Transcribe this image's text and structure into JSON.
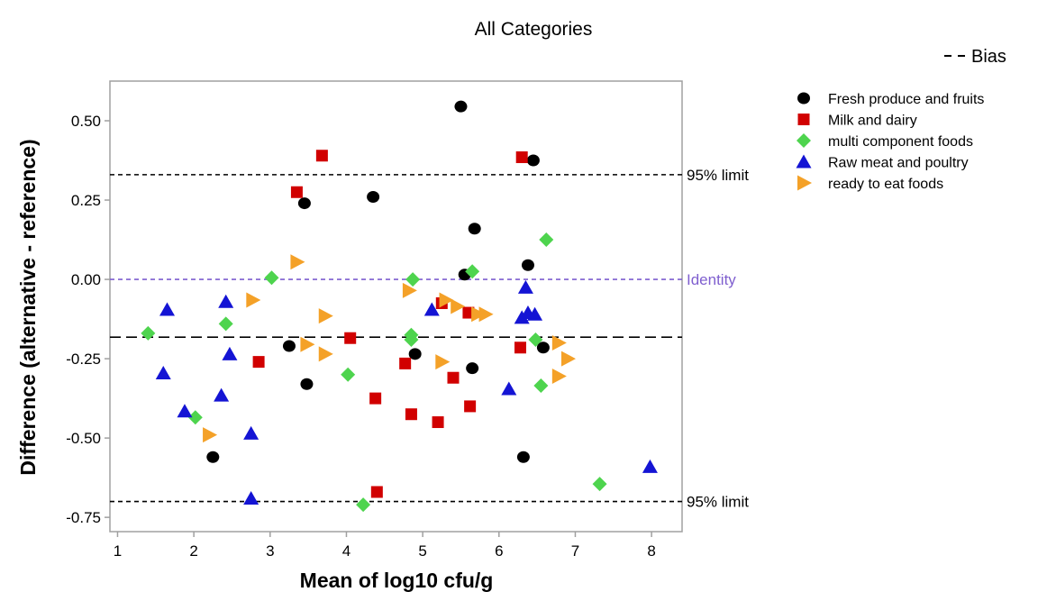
{
  "chart_data": {
    "type": "scatter",
    "title": "All Categories",
    "xlabel": "Mean of log10 cfu/g",
    "ylabel": "Difference (alternative - reference)",
    "xlim": [
      0.9,
      8.4
    ],
    "ylim": [
      -0.795,
      0.625
    ],
    "x_ticks": [
      1,
      2,
      3,
      4,
      5,
      6,
      7,
      8
    ],
    "y_ticks": [
      0.5,
      0.25,
      0.0,
      -0.25,
      -0.5,
      -0.75
    ],
    "y_tick_labels": [
      "0.50",
      "0.25",
      "0.00",
      "-0.25",
      "-0.50",
      "-0.75"
    ],
    "grid": false,
    "legend_position": "right",
    "reference_lines": [
      {
        "label": "95% limit",
        "value": 0.33,
        "style": "dashed",
        "color": "#000000"
      },
      {
        "label": "Identity",
        "value": 0.0,
        "style": "dashed",
        "color": "#7f5fcf"
      },
      {
        "label": "",
        "value": -0.182,
        "style": "long-dashed",
        "color": "#000000"
      },
      {
        "label": "95% limit",
        "value": -0.7,
        "style": "dashed",
        "color": "#000000"
      }
    ],
    "bias_legend": "Bias",
    "series": [
      {
        "name": "Fresh produce and fruits",
        "marker": "circle",
        "color": "#000000",
        "points": [
          [
            2.25,
            -0.56
          ],
          [
            3.25,
            -0.21
          ],
          [
            3.45,
            0.24
          ],
          [
            3.48,
            -0.33
          ],
          [
            4.35,
            0.26
          ],
          [
            4.9,
            -0.235
          ],
          [
            5.5,
            0.545
          ],
          [
            5.55,
            0.015
          ],
          [
            5.65,
            -0.28
          ],
          [
            5.68,
            0.16
          ],
          [
            6.32,
            -0.56
          ],
          [
            6.38,
            0.045
          ],
          [
            6.45,
            0.375
          ],
          [
            6.58,
            -0.215
          ]
        ]
      },
      {
        "name": "Milk and dairy",
        "marker": "square",
        "color": "#d10000",
        "points": [
          [
            2.85,
            -0.26
          ],
          [
            3.35,
            0.275
          ],
          [
            3.68,
            0.39
          ],
          [
            4.05,
            -0.185
          ],
          [
            4.38,
            -0.375
          ],
          [
            4.4,
            -0.67
          ],
          [
            4.77,
            -0.265
          ],
          [
            4.85,
            -0.425
          ],
          [
            5.2,
            -0.45
          ],
          [
            5.25,
            -0.075
          ],
          [
            5.4,
            -0.31
          ],
          [
            5.6,
            -0.105
          ],
          [
            5.62,
            -0.4
          ],
          [
            6.28,
            -0.215
          ],
          [
            6.3,
            0.385
          ]
        ]
      },
      {
        "name": "multi component foods",
        "marker": "diamond",
        "color": "#4ed44e",
        "points": [
          [
            1.4,
            -0.17
          ],
          [
            2.02,
            -0.435
          ],
          [
            2.42,
            -0.14
          ],
          [
            3.02,
            0.005
          ],
          [
            4.02,
            -0.3
          ],
          [
            4.22,
            -0.71
          ],
          [
            4.85,
            -0.19
          ],
          [
            4.85,
            -0.175
          ],
          [
            4.87,
            0.0
          ],
          [
            5.65,
            0.025
          ],
          [
            6.48,
            -0.19
          ],
          [
            6.55,
            -0.335
          ],
          [
            6.62,
            0.125
          ],
          [
            7.32,
            -0.645
          ]
        ]
      },
      {
        "name": "Raw meat and poultry",
        "marker": "triangle-up",
        "color": "#1414d4",
        "points": [
          [
            1.6,
            -0.295
          ],
          [
            1.65,
            -0.095
          ],
          [
            1.88,
            -0.415
          ],
          [
            2.36,
            -0.365
          ],
          [
            2.42,
            -0.07
          ],
          [
            2.47,
            -0.235
          ],
          [
            2.75,
            -0.485
          ],
          [
            2.75,
            -0.69
          ],
          [
            5.12,
            -0.095
          ],
          [
            6.13,
            -0.345
          ],
          [
            6.3,
            -0.12
          ],
          [
            6.35,
            -0.025
          ],
          [
            6.38,
            -0.105
          ],
          [
            6.47,
            -0.11
          ],
          [
            7.98,
            -0.59
          ]
        ]
      },
      {
        "name": "ready to eat foods",
        "marker": "triangle-right",
        "color": "#f4a128",
        "points": [
          [
            2.2,
            -0.49
          ],
          [
            2.77,
            -0.065
          ],
          [
            3.35,
            0.055
          ],
          [
            3.48,
            -0.205
          ],
          [
            3.72,
            -0.235
          ],
          [
            3.72,
            -0.115
          ],
          [
            4.82,
            -0.035
          ],
          [
            5.25,
            -0.26
          ],
          [
            5.3,
            -0.065
          ],
          [
            5.45,
            -0.085
          ],
          [
            5.72,
            -0.11
          ],
          [
            5.82,
            -0.11
          ],
          [
            6.78,
            -0.2
          ],
          [
            6.78,
            -0.305
          ],
          [
            6.9,
            -0.25
          ]
        ]
      }
    ]
  }
}
